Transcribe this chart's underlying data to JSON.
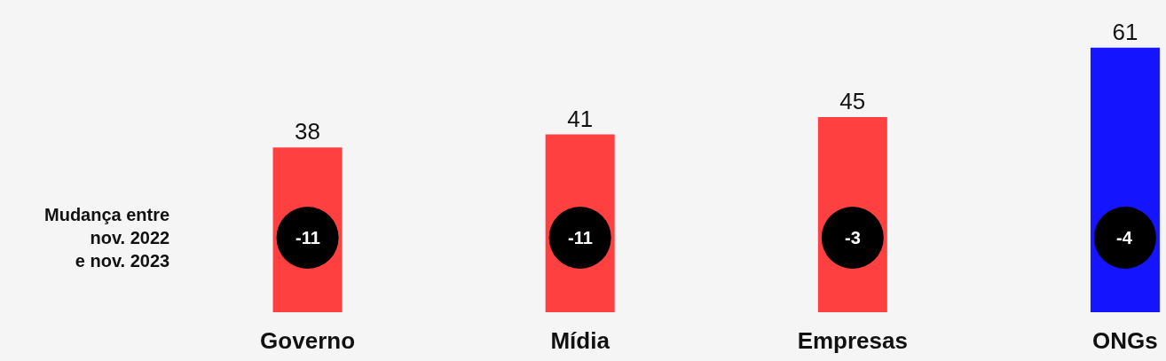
{
  "chart_data": {
    "type": "bar",
    "categories": [
      "Governo",
      "Mídia",
      "Empresas",
      "ONGs"
    ],
    "values": [
      38,
      41,
      45,
      61
    ],
    "colors": [
      "#ff4040",
      "#ff4040",
      "#ff4040",
      "#1414ff"
    ],
    "data_labels": true,
    "annotations": [
      "Mudança entre\nnov. 2022\ne nov. 2023",
      "-11",
      "-11",
      "-3",
      "-4"
    ]
  }
}
